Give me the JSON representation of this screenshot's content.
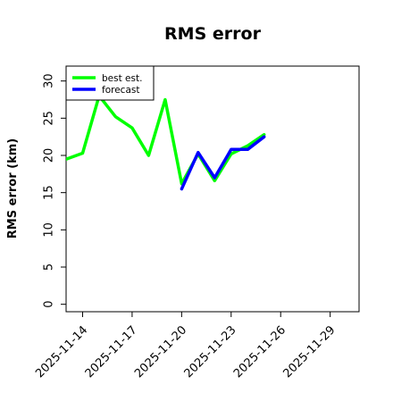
{
  "chart_data": {
    "type": "line",
    "title": "RMS error",
    "ylabel": "RMS error (km)",
    "xlabel": "",
    "ylim": [
      -1,
      32
    ],
    "xlim": [
      "2025-11-13T00:00",
      "2025-11-30T18:00"
    ],
    "yticks": [
      0,
      5,
      10,
      15,
      20,
      25,
      30
    ],
    "xticks": [
      {
        "date": "2025-11-14",
        "label": "2025-11-14",
        "color": "#000000"
      },
      {
        "date": "2025-11-17",
        "label": "2025-11-17",
        "color": "#000000"
      },
      {
        "date": "2025-11-20",
        "label": "2025-11-20",
        "color": "#008000"
      },
      {
        "date": "2025-11-23",
        "label": "2025-11-23",
        "color": "#000000"
      },
      {
        "date": "2025-11-26",
        "label": "2025-11-26",
        "color": "#000000"
      },
      {
        "date": "2025-11-29",
        "label": "2025-11-29",
        "color": "#000000"
      }
    ],
    "grid": false,
    "legend_position": "top-left",
    "series": [
      {
        "name": "best est.",
        "color": "#00ff00",
        "points": [
          {
            "x": "2025-11-13T00:00",
            "y": 19.5
          },
          {
            "x": "2025-11-14T00:00",
            "y": 20.3
          },
          {
            "x": "2025-11-15T00:00",
            "y": 28.0
          },
          {
            "x": "2025-11-16T00:00",
            "y": 25.2
          },
          {
            "x": "2025-11-17T00:00",
            "y": 23.7
          },
          {
            "x": "2025-11-18T00:00",
            "y": 20.0
          },
          {
            "x": "2025-11-19T00:00",
            "y": 27.5
          },
          {
            "x": "2025-11-20T00:00",
            "y": 16.2
          },
          {
            "x": "2025-11-21T00:00",
            "y": 20.2
          },
          {
            "x": "2025-11-22T00:00",
            "y": 16.6
          },
          {
            "x": "2025-11-23T00:00",
            "y": 20.2
          },
          {
            "x": "2025-11-24T00:00",
            "y": 21.3
          },
          {
            "x": "2025-11-25T00:00",
            "y": 22.8
          }
        ]
      },
      {
        "name": "forecast",
        "color": "#0000ff",
        "points": [
          {
            "x": "2025-11-20T00:00",
            "y": 15.5
          },
          {
            "x": "2025-11-21T00:00",
            "y": 20.4
          },
          {
            "x": "2025-11-22T00:00",
            "y": 17.0
          },
          {
            "x": "2025-11-23T00:00",
            "y": 20.8
          },
          {
            "x": "2025-11-24T00:00",
            "y": 20.8
          },
          {
            "x": "2025-11-25T00:00",
            "y": 22.5
          }
        ]
      }
    ]
  }
}
